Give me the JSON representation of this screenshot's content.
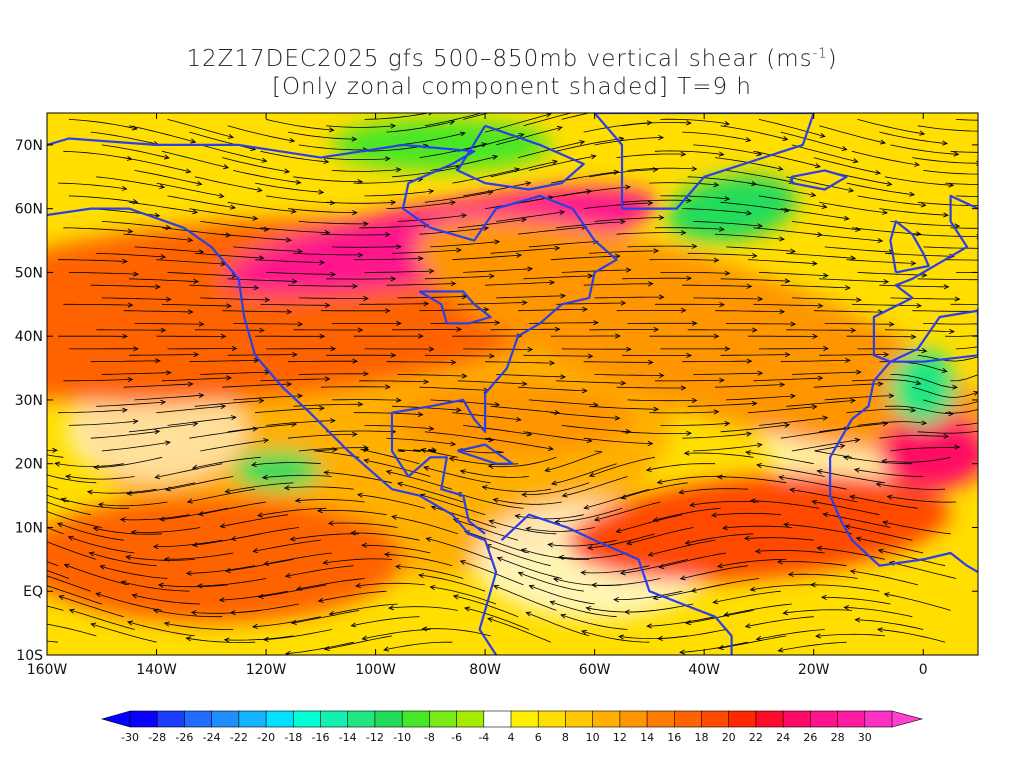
{
  "title": {
    "line1": "12Z17DEC2025 gfs 500–850mb vertical shear (ms",
    "line1_sup": "-1",
    "line1_end": ")",
    "line2": "[Only zonal component shaded] T=9 h"
  },
  "map": {
    "lon_range": [
      -160,
      10
    ],
    "lat_range": [
      -10,
      75
    ],
    "lat_labels": [
      "70N",
      "60N",
      "50N",
      "40N",
      "30N",
      "20N",
      "10N",
      "EQ",
      "10S"
    ],
    "lat_values": [
      70,
      60,
      50,
      40,
      30,
      20,
      10,
      0,
      -10
    ],
    "lon_labels": [
      "160W",
      "140W",
      "120W",
      "100W",
      "80W",
      "60W",
      "40W",
      "20W",
      "0"
    ],
    "lon_values": [
      -160,
      -140,
      -120,
      -100,
      -80,
      -60,
      -40,
      -20,
      0
    ],
    "coastline_color": "#2b3fe8",
    "streamline_color": "#000000"
  },
  "colorbar": {
    "labels": [
      "-30",
      "-28",
      "-26",
      "-24",
      "-22",
      "-20",
      "-18",
      "-16",
      "-14",
      "-12",
      "-10",
      "-8",
      "-6",
      "-4",
      "4",
      "6",
      "8",
      "10",
      "12",
      "14",
      "16",
      "18",
      "20",
      "22",
      "24",
      "26",
      "28",
      "30"
    ],
    "colors": [
      "#0a00ff",
      "#1a3cff",
      "#1f6eff",
      "#1f8fff",
      "#14b4ff",
      "#00e0ff",
      "#00ffd5",
      "#14f0b0",
      "#21e681",
      "#23dc5a",
      "#46e628",
      "#78eb14",
      "#a6ec00",
      "#ffffff",
      "#fff000",
      "#ffde00",
      "#ffc800",
      "#ffb000",
      "#ff9600",
      "#ff7d00",
      "#ff6400",
      "#ff4a00",
      "#ff2800",
      "#ff0a2a",
      "#ff0a64",
      "#ff148c",
      "#ff1aa0",
      "#ff30c8"
    ]
  },
  "shading": {
    "features": [
      {
        "name": "north-pacific-jet",
        "lon": -125,
        "lat": 43,
        "rx": 55,
        "ry": 8,
        "rot": -4,
        "color": "#ff0a64"
      },
      {
        "name": "north-pacific-jet-edge",
        "lon": -125,
        "lat": 44,
        "rx": 65,
        "ry": 14,
        "rot": -4,
        "color": "#ff6400"
      },
      {
        "name": "canada-jet",
        "lon": -88,
        "lat": 55,
        "rx": 40,
        "ry": 6,
        "rot": -10,
        "color": "#ff148c"
      },
      {
        "name": "atlantic-jet",
        "lon": -35,
        "lat": 40,
        "rx": 40,
        "ry": 5,
        "rot": 20,
        "color": "#ff148c"
      },
      {
        "name": "atlantic-jet-edge",
        "lon": -40,
        "lat": 40,
        "rx": 55,
        "ry": 12,
        "rot": 18,
        "color": "#ff9600"
      },
      {
        "name": "subtropical-pacific",
        "lon": -130,
        "lat": 5,
        "rx": 35,
        "ry": 10,
        "rot": 0,
        "color": "#ff6400"
      },
      {
        "name": "tropical-atlantic",
        "lon": -30,
        "lat": 10,
        "rx": 35,
        "ry": 8,
        "rot": -5,
        "color": "#ff4a00"
      },
      {
        "name": "west-africa",
        "lon": 2,
        "lat": 22,
        "rx": 10,
        "ry": 6,
        "rot": 0,
        "color": "#ff0a64"
      },
      {
        "name": "gulf-of-mexico",
        "lon": -75,
        "lat": 27,
        "rx": 22,
        "ry": 6,
        "rot": 0,
        "color": "#ff9600"
      },
      {
        "name": "greenland-green",
        "lon": -35,
        "lat": 60,
        "rx": 12,
        "ry": 5,
        "rot": -10,
        "color": "#23dc5a"
      },
      {
        "name": "hudson-green",
        "lon": -88,
        "lat": 70,
        "rx": 20,
        "ry": 4,
        "rot": 0,
        "color": "#46e628"
      },
      {
        "name": "pacific-green",
        "lon": -118,
        "lat": 19,
        "rx": 8,
        "ry": 3,
        "rot": 0,
        "color": "#23dc5a"
      },
      {
        "name": "mediterranean-green",
        "lon": 0,
        "lat": 32,
        "rx": 6,
        "ry": 6,
        "rot": 0,
        "color": "#21e681"
      }
    ]
  }
}
